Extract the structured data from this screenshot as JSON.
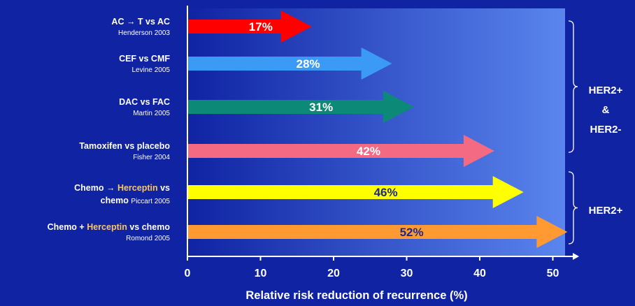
{
  "chart_data": {
    "type": "bar",
    "orientation": "horizontal",
    "title": "",
    "xlabel": "Relative risk reduction of recurrence (%)",
    "ylabel": "",
    "xlim": [
      0,
      52
    ],
    "xticks": [
      "0",
      "10",
      "20",
      "30",
      "40",
      "50"
    ],
    "grid": false,
    "bars": [
      {
        "label": "AC → T vs AC",
        "label_parts": [
          {
            "text": "AC → T vs AC",
            "highlight": false
          }
        ],
        "source_inline": "",
        "source": "Henderson 2003",
        "value": 17,
        "value_label": "17%",
        "color": "#ff0000",
        "value_color": "#ffffff"
      },
      {
        "label": "CEF vs CMF",
        "label_parts": [
          {
            "text": "CEF vs CMF",
            "highlight": false
          }
        ],
        "source_inline": "",
        "source": "Levine 2005",
        "value": 28,
        "value_label": "28%",
        "color": "#3b9af5",
        "value_color": "#ffffff"
      },
      {
        "label": "DAC vs FAC",
        "label_parts": [
          {
            "text": "DAC vs FAC",
            "highlight": false
          }
        ],
        "source_inline": "",
        "source": "Martin 2005",
        "value": 31,
        "value_label": "31%",
        "color": "#0c8a77",
        "value_color": "#ffffff"
      },
      {
        "label": "Tamoxifen vs placebo",
        "label_parts": [
          {
            "text": "Tamoxifen vs placebo",
            "highlight": false
          }
        ],
        "source_inline": "",
        "source": "Fisher 2004",
        "value": 42,
        "value_label": "42%",
        "color": "#f46a82",
        "value_color": "#ffffff"
      },
      {
        "label": "Chemo → Herceptin vs chemo",
        "label_parts": [
          {
            "text": "Chemo → ",
            "highlight": false
          },
          {
            "text": "Herceptin",
            "highlight": true
          },
          {
            "text": " vs",
            "highlight": false
          }
        ],
        "label_line2": "chemo",
        "source_inline": "Piccart 2005",
        "source": "",
        "value": 46,
        "value_label": "46%",
        "color": "#ffff00",
        "value_color": "#1a2a8c"
      },
      {
        "label": "Chemo + Herceptin vs chemo",
        "label_parts": [
          {
            "text": "Chemo + ",
            "highlight": false
          },
          {
            "text": "Herceptin",
            "highlight": true
          },
          {
            "text": " vs chemo",
            "highlight": false
          }
        ],
        "source_inline": "",
        "source": "Romond 2005",
        "value": 52,
        "value_label": "52%",
        "color": "#ff9a33",
        "value_color": "#1a2a8c"
      }
    ],
    "groups": [
      {
        "label_lines": [
          "HER2+",
          "&",
          "HER2-"
        ],
        "bars": [
          0,
          3
        ]
      },
      {
        "label_lines": [
          "HER2+"
        ],
        "bars": [
          4,
          5
        ]
      }
    ],
    "colors": {
      "background": "#0f23a3",
      "plot_left": "#0f23a3",
      "plot_right": "#5a85ee",
      "axis": "#ffffff",
      "highlight_text": "#f7c66a"
    }
  }
}
